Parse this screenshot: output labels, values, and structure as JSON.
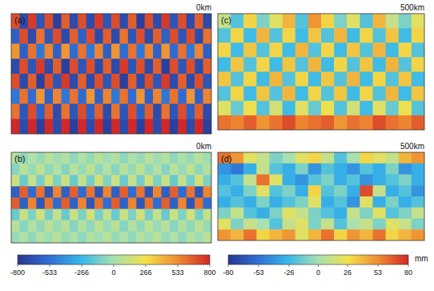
{
  "chart_data": [
    {
      "type": "heatmap",
      "label": "(a)",
      "title": "0km",
      "cells": [
        [
          700,
          -700,
          750,
          -650,
          700,
          -750,
          650,
          -700,
          700,
          -700,
          750,
          -650,
          700,
          -700,
          650,
          -750,
          700,
          -700,
          750,
          -650,
          700,
          -700,
          650,
          -700
        ],
        [
          -600,
          700,
          -700,
          600,
          -650,
          700,
          -700,
          650,
          -600,
          700,
          -700,
          650,
          -700,
          600,
          -650,
          700,
          -700,
          650,
          -600,
          700,
          -650,
          700,
          -700,
          600
        ],
        [
          500,
          -600,
          600,
          -500,
          550,
          -600,
          500,
          -550,
          600,
          -500,
          550,
          -600,
          500,
          -550,
          600,
          -500,
          550,
          -600,
          500,
          -550,
          600,
          -500,
          550,
          -600
        ],
        [
          -700,
          700,
          -650,
          750,
          -700,
          650,
          -750,
          700,
          -650,
          700,
          -700,
          650,
          -700,
          750,
          -650,
          700,
          -700,
          650,
          -750,
          700,
          -650,
          700,
          -700,
          650
        ],
        [
          700,
          -700,
          650,
          -750,
          700,
          -650,
          750,
          -700,
          650,
          -700,
          700,
          -650,
          700,
          -750,
          650,
          -700,
          700,
          -650,
          750,
          -700,
          650,
          -700,
          700,
          -650
        ],
        [
          -500,
          600,
          -550,
          500,
          -600,
          550,
          -500,
          600,
          -550,
          500,
          -600,
          550,
          -500,
          600,
          -550,
          500,
          -600,
          550,
          -500,
          600,
          -550,
          500,
          -600,
          550
        ],
        [
          600,
          -650,
          700,
          -600,
          650,
          -700,
          600,
          -650,
          700,
          -600,
          650,
          -700,
          600,
          -650,
          700,
          -600,
          650,
          -700,
          600,
          -650,
          700,
          -600,
          650,
          -700
        ],
        [
          800,
          -700,
          800,
          -750,
          800,
          -700,
          800,
          -750,
          800,
          -700,
          800,
          -750,
          800,
          -700,
          800,
          -750,
          800,
          -700,
          800,
          -750,
          800,
          -700,
          800,
          -750
        ]
      ]
    },
    {
      "type": "heatmap",
      "label": "(b)",
      "title": "0km",
      "cells": [
        [
          40,
          -60,
          20,
          -40,
          60,
          -20,
          40,
          -60,
          20,
          -40,
          60,
          -20,
          40,
          -60,
          20,
          -40,
          60,
          -20,
          40,
          -60,
          20,
          -40,
          60,
          -20
        ],
        [
          -80,
          60,
          -40,
          80,
          -60,
          40,
          -80,
          60,
          -40,
          80,
          -60,
          40,
          -80,
          60,
          -40,
          80,
          -60,
          40,
          -80,
          60,
          -40,
          80,
          -60,
          40
        ],
        [
          120,
          -150,
          100,
          -120,
          150,
          -100,
          120,
          -150,
          100,
          -120,
          150,
          -100,
          120,
          -150,
          100,
          -120,
          150,
          -100,
          120,
          -150,
          100,
          -120,
          150,
          -100
        ],
        [
          -600,
          650,
          -550,
          600,
          -650,
          550,
          -600,
          650,
          -550,
          600,
          -650,
          550,
          -600,
          650,
          -550,
          600,
          -650,
          550,
          -600,
          650,
          -550,
          600,
          -650,
          550
        ],
        [
          650,
          -600,
          550,
          -650,
          600,
          -550,
          650,
          -600,
          550,
          -650,
          600,
          -550,
          650,
          -600,
          550,
          -650,
          600,
          -550,
          650,
          -600,
          550,
          -650,
          600,
          -550
        ],
        [
          -150,
          120,
          -100,
          150,
          -120,
          100,
          -150,
          120,
          -100,
          150,
          -120,
          100,
          -150,
          120,
          -100,
          150,
          -120,
          100,
          -150,
          120,
          -100,
          150,
          -120,
          100
        ],
        [
          60,
          -80,
          40,
          -60,
          80,
          -40,
          60,
          -80,
          40,
          -60,
          80,
          -40,
          60,
          -80,
          40,
          -60,
          80,
          -40,
          60,
          -80,
          40,
          -60,
          80,
          -40
        ],
        [
          -40,
          20,
          -60,
          40,
          -20,
          60,
          -40,
          20,
          -60,
          40,
          -20,
          60,
          -40,
          20,
          -60,
          40,
          -20,
          60,
          -40,
          20,
          -60,
          40,
          -20,
          60
        ]
      ],
      "colorbar": {
        "range": [
          -800,
          800
        ],
        "ticks": [
          -800,
          -533,
          -266,
          0,
          266,
          533,
          800
        ],
        "colors": [
          "#2a3590",
          "#2f6fd6",
          "#38b8e8",
          "#a8e0b0",
          "#f2e04a",
          "#f08a30",
          "#d02828"
        ]
      }
    },
    {
      "type": "heatmap",
      "label": "(c)",
      "title": "500km",
      "cells": [
        [
          10,
          -20,
          30,
          -10,
          20,
          40,
          -20,
          50,
          30,
          -10,
          20,
          -20,
          40,
          10,
          -10,
          20
        ],
        [
          -20,
          30,
          -25,
          40,
          -20,
          30,
          -25,
          35,
          -20,
          40,
          -25,
          30,
          -20,
          35,
          -25,
          30
        ],
        [
          30,
          -25,
          35,
          -20,
          30,
          -25,
          40,
          -20,
          30,
          -25,
          35,
          -20,
          40,
          -25,
          30,
          -20
        ],
        [
          -25,
          35,
          -20,
          30,
          -25,
          35,
          -20,
          40,
          -25,
          30,
          -20,
          35,
          -25,
          40,
          -20,
          30
        ],
        [
          35,
          -20,
          30,
          -25,
          40,
          -20,
          30,
          -25,
          35,
          -20,
          40,
          -25,
          30,
          -20,
          35,
          -25
        ],
        [
          -20,
          30,
          -25,
          35,
          -20,
          40,
          -25,
          30,
          -20,
          35,
          -25,
          30,
          -20,
          40,
          -25,
          35
        ],
        [
          20,
          -15,
          25,
          -20,
          15,
          -25,
          20,
          -15,
          25,
          -20,
          15,
          -25,
          20,
          -15,
          25,
          -20
        ],
        [
          60,
          55,
          65,
          50,
          60,
          70,
          55,
          60,
          65,
          50,
          60,
          55,
          70,
          60,
          55,
          65
        ]
      ]
    },
    {
      "type": "heatmap",
      "label": "(d)",
      "title": "500km",
      "cells": [
        [
          60,
          50,
          20,
          10,
          -10,
          0,
          20,
          30,
          10,
          -20,
          0,
          30,
          20,
          10,
          40,
          50
        ],
        [
          -40,
          -50,
          -30,
          10,
          -20,
          -30,
          -10,
          -40,
          -20,
          -30,
          -40,
          -20,
          -30,
          -10,
          -40,
          -30
        ],
        [
          -30,
          -20,
          10,
          60,
          20,
          -30,
          -40,
          -20,
          -10,
          -30,
          -20,
          -40,
          -30,
          -20,
          -10,
          -30
        ],
        [
          -20,
          -30,
          -10,
          20,
          -20,
          -10,
          -30,
          30,
          -20,
          -10,
          -30,
          70,
          10,
          -30,
          -20,
          -40
        ],
        [
          -30,
          -20,
          -30,
          -10,
          -30,
          -20,
          -10,
          20,
          -30,
          -20,
          -40,
          20,
          -30,
          -10,
          -30,
          -20
        ],
        [
          -10,
          10,
          -20,
          -30,
          -10,
          20,
          10,
          -10,
          -20,
          -30,
          10,
          -10,
          20,
          -20,
          -10,
          10
        ],
        [
          20,
          -10,
          10,
          0,
          -20,
          10,
          20,
          -10,
          10,
          -20,
          0,
          10,
          -10,
          20,
          10,
          -10
        ],
        [
          50,
          40,
          60,
          30,
          40,
          50,
          20,
          40,
          60,
          30,
          50,
          40,
          60,
          30,
          40,
          50
        ]
      ],
      "colorbar": {
        "range": [
          -80,
          80
        ],
        "ticks": [
          -80,
          -53,
          -26,
          0,
          26,
          53,
          80
        ],
        "label": "mm",
        "colors": [
          "#2a3590",
          "#2f6fd6",
          "#38b8e8",
          "#a8e0b0",
          "#f2e04a",
          "#f08a30",
          "#d02828"
        ]
      }
    }
  ]
}
